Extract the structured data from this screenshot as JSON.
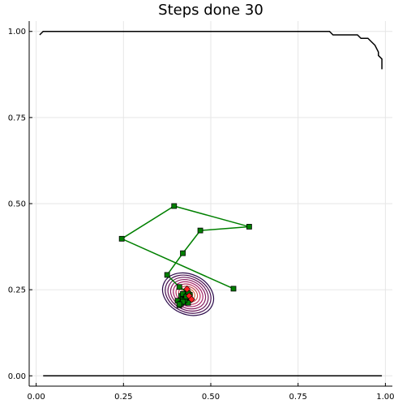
{
  "chart_data": {
    "type": "line",
    "title": "Steps done 30",
    "xlabel": "",
    "ylabel": "",
    "xlim": [
      -0.02,
      1.02
    ],
    "ylim": [
      -0.03,
      1.03
    ],
    "grid": true,
    "legend": "none",
    "x_ticks": [
      "0.00",
      "0.25",
      "0.50",
      "0.75",
      "1.00"
    ],
    "x_tick_values": [
      0,
      0.25,
      0.5,
      0.75,
      1.0
    ],
    "y_ticks": [
      "0.00",
      "0.25",
      "0.50",
      "0.75",
      "1.00"
    ],
    "y_tick_values": [
      0,
      0.25,
      0.5,
      0.75,
      1.0
    ],
    "colors": {
      "boundary": "#000000",
      "path": "#008000",
      "marker_fill": "#008000",
      "marker_edge": "#000000",
      "current_point": "#ff2020",
      "contour_outer": "#2a0a4a",
      "contour_mid": "#b52a6e",
      "contour_inner": "#f5a623",
      "grid": "#e6e6e6"
    },
    "upper_boundary": {
      "x": [
        0.01,
        0.02,
        0.84,
        0.85,
        0.92,
        0.93,
        0.95,
        0.96,
        0.97,
        0.98,
        0.98,
        0.99,
        0.99
      ],
      "y": [
        0.99,
        1.0,
        1.0,
        0.99,
        0.99,
        0.98,
        0.98,
        0.97,
        0.96,
        0.94,
        0.93,
        0.92,
        0.89
      ]
    },
    "lower_boundary": {
      "x": [
        0.02,
        0.99
      ],
      "y": [
        0.0,
        0.0
      ]
    },
    "optimization_path": {
      "x": [
        0.565,
        0.245,
        0.395,
        0.61,
        0.47,
        0.42,
        0.375,
        0.41,
        0.43,
        0.415,
        0.44,
        0.405,
        0.425,
        0.42,
        0.435,
        0.41,
        0.43,
        0.42,
        0.44,
        0.415,
        0.425,
        0.435,
        0.42,
        0.41,
        0.43
      ],
      "y": [
        0.253,
        0.398,
        0.493,
        0.433,
        0.422,
        0.356,
        0.293,
        0.258,
        0.245,
        0.232,
        0.225,
        0.218,
        0.214,
        0.238,
        0.212,
        0.205,
        0.228,
        0.222,
        0.235,
        0.21,
        0.22,
        0.24,
        0.215,
        0.208,
        0.23
      ]
    },
    "current_points": {
      "x": [
        0.432,
        0.438,
        0.445
      ],
      "y": [
        0.252,
        0.232,
        0.222
      ]
    },
    "contours": {
      "center": [
        0.435,
        0.237
      ],
      "rx": [
        0.076,
        0.068,
        0.06,
        0.052,
        0.044,
        0.036,
        0.028,
        0.02,
        0.013,
        0.007
      ],
      "ry": [
        0.058,
        0.052,
        0.046,
        0.04,
        0.034,
        0.028,
        0.022,
        0.016,
        0.011,
        0.006
      ],
      "rotation_deg": 25
    }
  }
}
